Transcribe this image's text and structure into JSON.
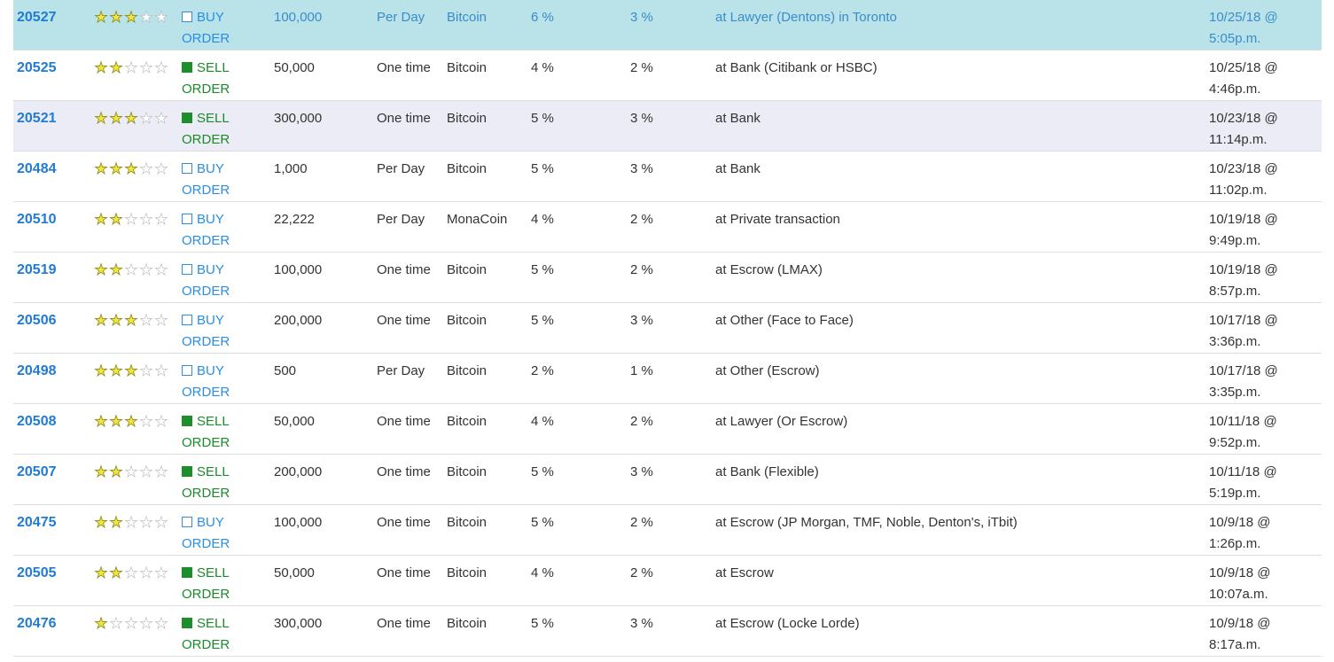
{
  "orders": [
    {
      "id": "20527",
      "rating": 3,
      "order_type": "buy",
      "type_label": "BUY",
      "order_label": "ORDER",
      "amount": "100,000",
      "frequency": "Per Day",
      "currency": "Bitcoin",
      "fee1": "6 %",
      "fee2": "3 %",
      "location": "at Lawyer (Dentons) in Toronto",
      "date": "10/25/18 @",
      "time": "5:05p.m.",
      "style": "highlight"
    },
    {
      "id": "20525",
      "rating": 2,
      "order_type": "sell",
      "type_label": "SELL",
      "order_label": "ORDER",
      "amount": "50,000",
      "frequency": "One time",
      "currency": "Bitcoin",
      "fee1": "4 %",
      "fee2": "2 %",
      "location": "at Bank (Citibank or HSBC)",
      "date": "10/25/18 @",
      "time": "4:46p.m.",
      "style": "normal"
    },
    {
      "id": "20521",
      "rating": 3,
      "order_type": "sell",
      "type_label": "SELL",
      "order_label": "ORDER",
      "amount": "300,000",
      "frequency": "One time",
      "currency": "Bitcoin",
      "fee1": "5 %",
      "fee2": "3 %",
      "location": "at Bank",
      "date": "10/23/18 @",
      "time": "11:14p.m.",
      "style": "alt"
    },
    {
      "id": "20484",
      "rating": 3,
      "order_type": "buy",
      "type_label": "BUY",
      "order_label": "ORDER",
      "amount": "1,000",
      "frequency": "Per Day",
      "currency": "Bitcoin",
      "fee1": "5 %",
      "fee2": "3 %",
      "location": "at Bank",
      "date": "10/23/18 @",
      "time": "11:02p.m.",
      "style": "normal"
    },
    {
      "id": "20510",
      "rating": 2,
      "order_type": "buy",
      "type_label": "BUY",
      "order_label": "ORDER",
      "amount": "22,222",
      "frequency": "Per Day",
      "currency": "MonaCoin",
      "fee1": "4 %",
      "fee2": "2 %",
      "location": "at Private transaction",
      "date": "10/19/18 @",
      "time": "9:49p.m.",
      "style": "normal"
    },
    {
      "id": "20519",
      "rating": 2,
      "order_type": "buy",
      "type_label": "BUY",
      "order_label": "ORDER",
      "amount": "100,000",
      "frequency": "One time",
      "currency": "Bitcoin",
      "fee1": "5 %",
      "fee2": "2 %",
      "location": "at Escrow (LMAX)",
      "date": "10/19/18 @",
      "time": "8:57p.m.",
      "style": "normal"
    },
    {
      "id": "20506",
      "rating": 3,
      "order_type": "buy",
      "type_label": "BUY",
      "order_label": "ORDER",
      "amount": "200,000",
      "frequency": "One time",
      "currency": "Bitcoin",
      "fee1": "5 %",
      "fee2": "3 %",
      "location": "at Other (Face to Face)",
      "date": "10/17/18 @",
      "time": "3:36p.m.",
      "style": "normal"
    },
    {
      "id": "20498",
      "rating": 3,
      "order_type": "buy",
      "type_label": "BUY",
      "order_label": "ORDER",
      "amount": "500",
      "frequency": "Per Day",
      "currency": "Bitcoin",
      "fee1": "2 %",
      "fee2": "1 %",
      "location": "at Other (Escrow)",
      "date": "10/17/18 @",
      "time": "3:35p.m.",
      "style": "normal"
    },
    {
      "id": "20508",
      "rating": 3,
      "order_type": "sell",
      "type_label": "SELL",
      "order_label": "ORDER",
      "amount": "50,000",
      "frequency": "One time",
      "currency": "Bitcoin",
      "fee1": "4 %",
      "fee2": "2 %",
      "location": "at Lawyer (Or Escrow)",
      "date": "10/11/18 @",
      "time": "9:52p.m.",
      "style": "normal"
    },
    {
      "id": "20507",
      "rating": 2,
      "order_type": "sell",
      "type_label": "SELL",
      "order_label": "ORDER",
      "amount": "200,000",
      "frequency": "One time",
      "currency": "Bitcoin",
      "fee1": "5 %",
      "fee2": "3 %",
      "location": "at Bank (Flexible)",
      "date": "10/11/18 @",
      "time": "5:19p.m.",
      "style": "normal"
    },
    {
      "id": "20475",
      "rating": 2,
      "order_type": "buy",
      "type_label": "BUY",
      "order_label": "ORDER",
      "amount": "100,000",
      "frequency": "One time",
      "currency": "Bitcoin",
      "fee1": "5 %",
      "fee2": "2 %",
      "location": "at Escrow (JP Morgan, TMF, Noble, Denton's, iTbit)",
      "date": "10/9/18 @",
      "time": "1:26p.m.",
      "style": "normal"
    },
    {
      "id": "20505",
      "rating": 2,
      "order_type": "sell",
      "type_label": "SELL",
      "order_label": "ORDER",
      "amount": "50,000",
      "frequency": "One time",
      "currency": "Bitcoin",
      "fee1": "4 %",
      "fee2": "2 %",
      "location": "at Escrow",
      "date": "10/9/18 @",
      "time": "10:07a.m.",
      "style": "normal"
    },
    {
      "id": "20476",
      "rating": 1,
      "order_type": "sell",
      "type_label": "SELL",
      "order_label": "ORDER",
      "amount": "300,000",
      "frequency": "One time",
      "currency": "Bitcoin",
      "fee1": "5 %",
      "fee2": "3 %",
      "location": "at Escrow (Locke Lorde)",
      "date": "10/9/18 @",
      "time": "8:17a.m.",
      "style": "normal"
    }
  ],
  "rating_max": 5,
  "colors": {
    "highlight_row_bg": "#b9e3e9",
    "alt_row_bg": "#ececf6",
    "id_link": "#1f7bd4",
    "buy": "#2b8ee0",
    "sell": "#1c8a2a",
    "star_on": "#f3e53a"
  }
}
